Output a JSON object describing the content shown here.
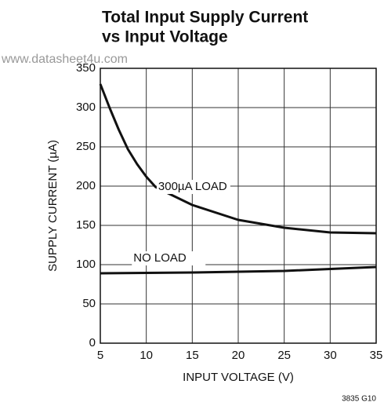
{
  "chart_data": {
    "type": "line",
    "title": [
      "Total Input Supply Current",
      "vs Input Voltage"
    ],
    "watermark": "www.datasheet4u.com",
    "footnote": "3835 G10",
    "xlabel": "INPUT VOLTAGE (V)",
    "ylabel": "SUPPLY CURRENT (µA)",
    "xlim": [
      5,
      35
    ],
    "xticks": [
      5,
      10,
      15,
      20,
      25,
      30,
      35
    ],
    "ylim": [
      0,
      350
    ],
    "yticks": [
      0,
      50,
      100,
      150,
      200,
      250,
      300,
      350
    ],
    "grid": true,
    "annotations": [
      "300µA LOAD",
      "NO LOAD"
    ],
    "series": [
      {
        "name": "300µA LOAD",
        "color": "#111111",
        "x": [
          5,
          6,
          7,
          8,
          9,
          10,
          11,
          12,
          15,
          20,
          25,
          30,
          35
        ],
        "values": [
          330,
          300,
          272,
          247,
          228,
          212,
          199,
          193,
          176,
          157,
          147,
          141,
          140
        ]
      },
      {
        "name": "NO LOAD",
        "color": "#111111",
        "x": [
          5,
          15,
          25,
          35
        ],
        "values": [
          89,
          90,
          92,
          97
        ]
      }
    ]
  }
}
